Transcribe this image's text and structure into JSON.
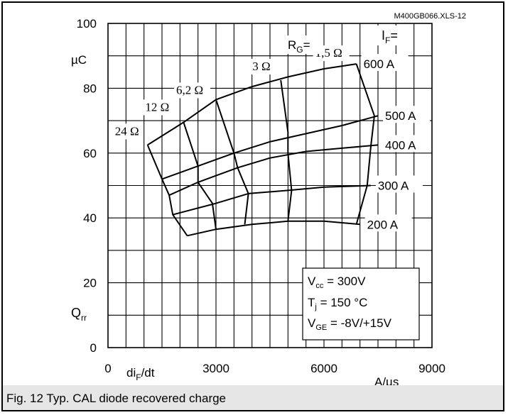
{
  "caption": "Fig. 12 Typ. CAL diode recovered charge",
  "chart_data": {
    "type": "line",
    "file_id": "M400GB066.XLS-12",
    "title": "",
    "xlabel": "di_F/dt",
    "xunit": "A/µs",
    "ylabel": "Q_rr",
    "yunit": "µC",
    "xlim": [
      0,
      9000
    ],
    "ylim": [
      0,
      100
    ],
    "x_ticks": [
      0,
      3000,
      6000,
      9000
    ],
    "y_ticks": [
      0,
      20,
      40,
      60,
      80,
      100
    ],
    "grid": true,
    "if_header": "IF=",
    "rg_header": "RG=",
    "series": [
      {
        "name": "600 A",
        "points": [
          [
            1100,
            62.5
          ],
          [
            2100,
            69.5
          ],
          [
            3000,
            76.5
          ],
          [
            4000,
            80.5
          ],
          [
            5000,
            83.5
          ],
          [
            6000,
            86
          ],
          [
            6900,
            87.5
          ]
        ]
      },
      {
        "name": "500 A",
        "points": [
          [
            1500,
            52
          ],
          [
            2500,
            56
          ],
          [
            3500,
            60
          ],
          [
            4500,
            63.5
          ],
          [
            5500,
            66
          ],
          [
            6500,
            68.5
          ],
          [
            7500,
            71.5
          ]
        ]
      },
      {
        "name": "400 A",
        "points": [
          [
            1700,
            47
          ],
          [
            2500,
            51
          ],
          [
            3600,
            55.5
          ],
          [
            4500,
            58.5
          ],
          [
            5500,
            60.5
          ],
          [
            6500,
            61.5
          ],
          [
            7500,
            62.5
          ]
        ]
      },
      {
        "name": "300 A",
        "points": [
          [
            1800,
            41
          ],
          [
            3000,
            44.5
          ],
          [
            3900,
            47.5
          ],
          [
            5000,
            48.5
          ],
          [
            6000,
            49.5
          ],
          [
            7300,
            50
          ]
        ]
      },
      {
        "name": "200 A",
        "points": [
          [
            2200,
            34.5
          ],
          [
            3000,
            36.5
          ],
          [
            4000,
            38
          ],
          [
            5000,
            39
          ],
          [
            6000,
            39
          ],
          [
            7000,
            38
          ]
        ]
      }
    ],
    "rg_curves": [
      {
        "name": "24 Ω",
        "points": [
          [
            1100,
            62.5
          ],
          [
            1500,
            52
          ],
          [
            1700,
            47
          ],
          [
            1800,
            41
          ],
          [
            2200,
            34.5
          ]
        ]
      },
      {
        "name": "12 Ω",
        "points": [
          [
            2100,
            69.5
          ],
          [
            2500,
            56
          ],
          [
            2500,
            51
          ],
          [
            2900,
            44.5
          ],
          [
            3000,
            36.5
          ]
        ]
      },
      {
        "name": "6,2 Ω",
        "points": [
          [
            3000,
            76.5
          ],
          [
            3500,
            60
          ],
          [
            3600,
            55.5
          ],
          [
            3900,
            47.5
          ],
          [
            3800,
            38
          ]
        ]
      },
      {
        "name": "3 Ω",
        "points": [
          [
            4800,
            82.5
          ],
          [
            5000,
            66.5
          ],
          [
            5000,
            60
          ],
          [
            5100,
            48.5
          ],
          [
            5000,
            39
          ]
        ]
      },
      {
        "name": "1,5 Ω",
        "points": [
          [
            6900,
            87.5
          ],
          [
            7400,
            71.5
          ],
          [
            7300,
            62
          ],
          [
            7200,
            50
          ],
          [
            6900,
            38
          ]
        ]
      }
    ],
    "conditions": [
      "V_cc = 300V",
      "T_j = 150 °C",
      "V_GE = -8V/+15V"
    ]
  }
}
